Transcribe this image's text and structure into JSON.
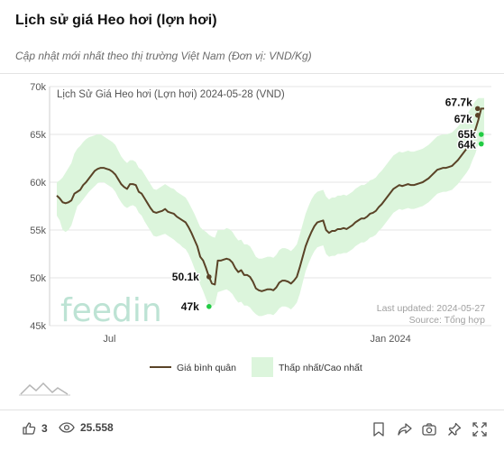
{
  "header": {
    "title": "Lịch sử giá Heo hơi (lợn hơi)",
    "subtitle": "Cập nhật mới nhất theo thị trường Việt Nam (Đơn vị: VND/Kg)"
  },
  "chart_data": {
    "type": "line",
    "title": "Lịch Sử Giá Heo hơi (Lợn hơi) 2024-05-28 (VND)",
    "x_ticks": [
      "Jul",
      "Jan 2024"
    ],
    "y_ticks": [
      "45k",
      "50k",
      "55k",
      "60k",
      "65k",
      "70k"
    ],
    "ylim": [
      45000,
      70000
    ],
    "grid": true,
    "legend_position": "bottom",
    "watermark": "feedin",
    "last_updated": "Last updated: 2024-05-27",
    "source": "Source: Tổng hợp",
    "annotations": [
      {
        "label": "50.1k",
        "y": 50100,
        "index": 52
      },
      {
        "label": "47k",
        "y": 47000,
        "index": 52
      },
      {
        "label": "67.7k",
        "y": 67700,
        "index": 145
      },
      {
        "label": "67k",
        "y": 67000,
        "index": 145
      },
      {
        "label": "65k",
        "y": 65000,
        "index": 145
      },
      {
        "label": "64k",
        "y": 64000,
        "index": 145
      }
    ],
    "series": [
      {
        "name": "Giá bình quân",
        "type": "line",
        "color": "#5a4327",
        "values": [
          58600,
          58300,
          57900,
          57800,
          57900,
          58100,
          58800,
          59000,
          59200,
          59700,
          60000,
          60400,
          60800,
          61200,
          61400,
          61500,
          61500,
          61400,
          61300,
          61100,
          60800,
          60300,
          59800,
          59500,
          59300,
          59800,
          59800,
          59700,
          59000,
          58800,
          58300,
          57800,
          57300,
          56900,
          56800,
          56900,
          57000,
          57200,
          56900,
          56800,
          56700,
          56400,
          56200,
          56000,
          55800,
          55300,
          54700,
          54000,
          53300,
          52200,
          51800,
          51000,
          50100,
          49400,
          49300,
          51800,
          51800,
          51900,
          52000,
          51900,
          51600,
          51000,
          50600,
          50800,
          50300,
          50300,
          50100,
          49600,
          48900,
          48700,
          48600,
          48700,
          48800,
          48800,
          48700,
          49000,
          49500,
          49700,
          49700,
          49600,
          49400,
          49700,
          50100,
          51100,
          52200,
          53300,
          54100,
          54800,
          55400,
          55800,
          55900,
          56000,
          55000,
          54700,
          54900,
          54900,
          55100,
          55100,
          55200,
          55100,
          55300,
          55500,
          55800,
          56000,
          56200,
          56200,
          56400,
          56700,
          56800,
          57000,
          57400,
          57700,
          58100,
          58500,
          58900,
          59300,
          59500,
          59700,
          59600,
          59700,
          59800,
          59700,
          59700,
          59800,
          59900,
          60000,
          60200,
          60400,
          60700,
          61000,
          61300,
          61400,
          61500,
          61500,
          61600,
          61700,
          62000,
          62300,
          62700,
          63100,
          63500,
          64000,
          64800,
          65500,
          66500,
          67700,
          67700
        ]
      },
      {
        "name": "Thấp nhất/Cao nhất",
        "type": "band",
        "color": "#dcf5dc",
        "low": [
          56500,
          56000,
          55000,
          54800,
          55000,
          55500,
          56500,
          57500,
          57800,
          58200,
          58600,
          59000,
          59300,
          59600,
          59900,
          60000,
          60000,
          59800,
          59600,
          59400,
          59000,
          58400,
          57900,
          57500,
          57300,
          57500,
          57600,
          57400,
          56800,
          56500,
          55900,
          55400,
          54900,
          54400,
          54300,
          54400,
          54500,
          54600,
          54400,
          54200,
          54000,
          53700,
          53500,
          53200,
          53000,
          52500,
          51800,
          51000,
          50200,
          49300,
          48600,
          47800,
          47000,
          47000,
          47200,
          48500,
          48600,
          48700,
          48800,
          48600,
          48300,
          47800,
          47400,
          47500,
          47100,
          47100,
          46900,
          46500,
          46200,
          46000,
          46000,
          46100,
          46200,
          46200,
          46100,
          46400,
          46800,
          47000,
          47000,
          46900,
          46700,
          47000,
          47400,
          48300,
          49500,
          50700,
          51500,
          52200,
          52800,
          53200,
          53300,
          53400,
          52500,
          52200,
          52300,
          52300,
          52500,
          52500,
          52600,
          52600,
          52800,
          53000,
          53300,
          53500,
          53700,
          53700,
          53900,
          54200,
          54300,
          54500,
          54900,
          55200,
          55600,
          56000,
          56400,
          56800,
          57000,
          57200,
          57100,
          57200,
          57300,
          57200,
          57200,
          57300,
          57400,
          57500,
          57700,
          57900,
          58200,
          58500,
          58800,
          58900,
          59000,
          59000,
          59100,
          59200,
          59500,
          59800,
          60200,
          60600,
          61000,
          61500,
          62300,
          63000,
          64000,
          64000,
          64000
        ],
        "high": [
          60000,
          60200,
          60500,
          61000,
          61500,
          62000,
          63000,
          63500,
          63800,
          64200,
          64500,
          64700,
          64800,
          64900,
          65000,
          65000,
          64800,
          64600,
          64400,
          64200,
          63900,
          63300,
          62700,
          62300,
          62000,
          62300,
          62300,
          62100,
          61500,
          61300,
          60800,
          60300,
          59800,
          59300,
          59200,
          59400,
          59600,
          59800,
          59600,
          59400,
          59300,
          59000,
          58800,
          58600,
          58400,
          57900,
          57300,
          56700,
          56000,
          55300,
          55000,
          54800,
          54500,
          54300,
          54200,
          55000,
          55000,
          55000,
          55200,
          55100,
          54800,
          54300,
          53900,
          54000,
          53500,
          53500,
          53300,
          52800,
          52200,
          52000,
          52000,
          52100,
          52200,
          52200,
          52100,
          52400,
          52900,
          53100,
          53100,
          53000,
          52800,
          53100,
          53500,
          54500,
          55600,
          56700,
          57500,
          58200,
          58700,
          59000,
          59100,
          59200,
          58500,
          58200,
          58400,
          58400,
          58600,
          58600,
          58700,
          58600,
          58800,
          59000,
          59300,
          59500,
          59700,
          59700,
          59900,
          60200,
          60300,
          60500,
          60900,
          61200,
          61600,
          62000,
          62400,
          62800,
          63000,
          63200,
          63100,
          63200,
          63300,
          63200,
          63200,
          63300,
          63400,
          63500,
          63700,
          63900,
          64200,
          64500,
          64800,
          64900,
          65000,
          65000,
          65100,
          65200,
          65500,
          65800,
          66200,
          66600,
          67000,
          67500,
          68000,
          68500,
          68800,
          68800,
          68800
        ]
      }
    ],
    "legend": [
      {
        "label": "Giá bình quân",
        "symbol": "line",
        "color": "#5a4327"
      },
      {
        "label": "Thấp nhất/Cao nhất",
        "symbol": "band",
        "color": "#dcf5dc"
      }
    ]
  },
  "footer": {
    "likes": "3",
    "views": "25.558",
    "icons": [
      "thumbs-up-icon",
      "eye-icon",
      "bookmark-icon",
      "share-icon",
      "camera-icon",
      "pin-icon",
      "expand-icon"
    ]
  }
}
